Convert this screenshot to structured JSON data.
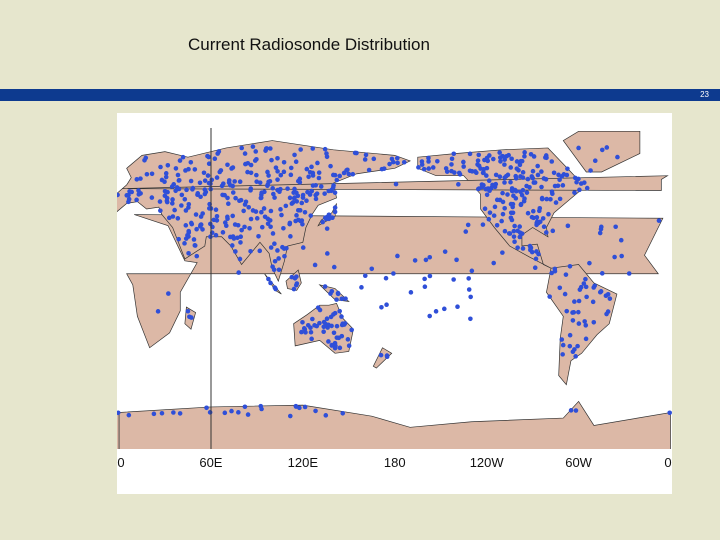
{
  "slide": {
    "title": "Current Radiosonde Distribution",
    "page_number": "23"
  },
  "map": {
    "lon_labels": [
      "0",
      "60E",
      "120E",
      "180",
      "120W",
      "60W",
      "0"
    ]
  }
}
